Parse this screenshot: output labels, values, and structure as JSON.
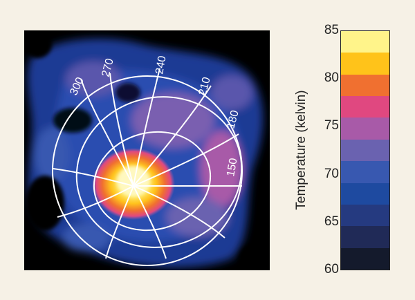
{
  "figure": {
    "colorbar_label": "Temperature (kelvin)",
    "colorbar_ticks": [
      "85",
      "80",
      "75",
      "70",
      "65",
      "60"
    ],
    "colorbar_range": [
      60,
      85
    ],
    "colorbar_colors": [
      "#141a2c",
      "#202a57",
      "#253a80",
      "#1e4aa0",
      "#3858b0",
      "#6a62b0",
      "#a85aa8",
      "#e04880",
      "#f07030",
      "#ffc31a",
      "#fff48a"
    ],
    "longitude_labels": [
      "300",
      "270",
      "240",
      "210",
      "180",
      "150"
    ],
    "hotspot_color": "#fff3a0",
    "background_color": "#000000"
  }
}
